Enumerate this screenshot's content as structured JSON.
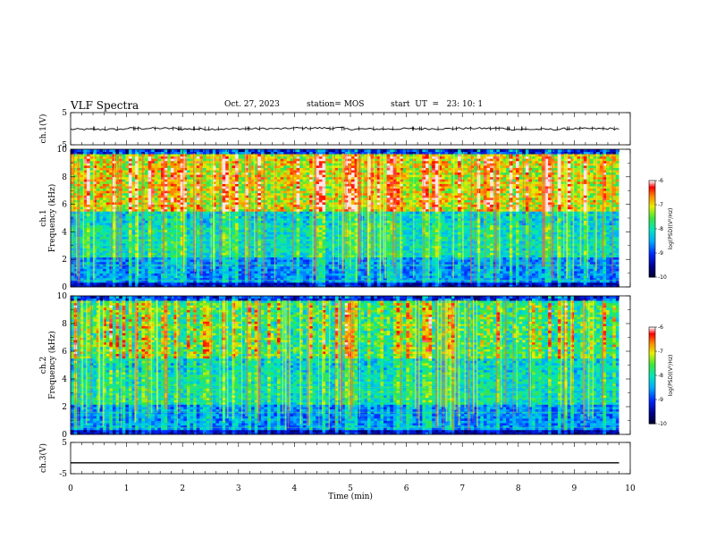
{
  "header": {
    "title": "VLF Spectra",
    "date": "Oct. 27, 2023",
    "station": "station= MOS",
    "start": "start  UT  =   23: 10: 1"
  },
  "chart_data": [
    {
      "type": "line",
      "panel": "ch1-waveform",
      "ylabel": "ch.1(V)",
      "ylim": [
        -5,
        5
      ],
      "yticks": [
        "5",
        "-5"
      ],
      "series": [
        {
          "values": [
            -0.2,
            0.1,
            -0.1,
            0.0,
            0.2,
            -0.1,
            0.0,
            0.1,
            -0.2,
            0.0
          ]
        }
      ]
    },
    {
      "type": "heatmap",
      "panel": "ch1-spectrogram",
      "ylabel_line1": "ch.1",
      "ylabel_line2": "Frequency  (kHz)",
      "ylim": [
        0,
        10
      ],
      "yticks": [
        "0",
        "2",
        "4",
        "6",
        "8",
        "10"
      ],
      "colorbar": {
        "label": "log(PSD)(V²/Hz)",
        "ticks": [
          "-6",
          "-7",
          "-8",
          "-9",
          "-10"
        ],
        "range": [
          -10,
          -6
        ]
      }
    },
    {
      "type": "heatmap",
      "panel": "ch2-spectrogram",
      "ylabel_line1": "ch.2",
      "ylabel_line2": "Frequency  (kHz)",
      "ylim": [
        0,
        10
      ],
      "yticks": [
        "0",
        "2",
        "4",
        "6",
        "8",
        "10"
      ],
      "colorbar": {
        "label": "log(PSD)(V²/Hz)",
        "ticks": [
          "-6",
          "-7",
          "-8",
          "-9",
          "-10"
        ],
        "range": [
          -10,
          -6
        ]
      }
    },
    {
      "type": "line",
      "panel": "ch3-waveform",
      "ylabel": "ch.3(V)",
      "ylim": [
        -5,
        5
      ],
      "yticks": [
        "5",
        "-5"
      ],
      "series": [
        {
          "values": [
            -1.5,
            -1.5,
            -1.5,
            -1.5,
            -1.5,
            -1.5,
            -1.5,
            -1.5,
            -1.5,
            -1.5
          ]
        }
      ]
    }
  ],
  "xaxis": {
    "label": "Time  (min)",
    "range": [
      0,
      10
    ],
    "ticks": [
      "0",
      "1",
      "2",
      "3",
      "4",
      "5",
      "6",
      "7",
      "8",
      "9",
      "10"
    ]
  },
  "colors": {
    "scale": [
      "#000040",
      "#0000c8",
      "#00a0ff",
      "#00e0c0",
      "#40e040",
      "#ffff00",
      "#ff8000",
      "#ff0000",
      "#ffffff"
    ]
  }
}
